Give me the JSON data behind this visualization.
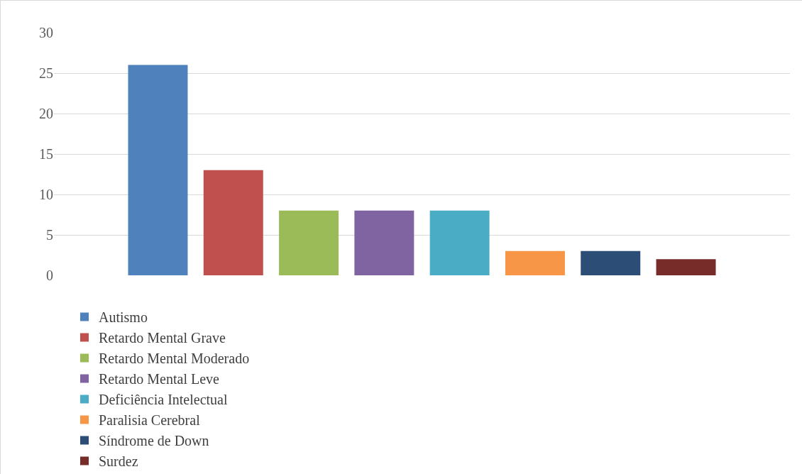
{
  "chart_data": {
    "type": "bar",
    "categories": [
      null
    ],
    "series": [
      {
        "name": "Autismo",
        "color": "#4f81bd",
        "values": [
          26
        ]
      },
      {
        "name": "Retardo Mental Grave",
        "color": "#c0504d",
        "values": [
          13
        ]
      },
      {
        "name": "Retardo Mental Moderado",
        "color": "#9bbb59",
        "values": [
          8
        ]
      },
      {
        "name": "Retardo Mental Leve",
        "color": "#8064a2",
        "values": [
          8
        ]
      },
      {
        "name": "Deficiência Intelectual",
        "color": "#4bacc6",
        "values": [
          8
        ]
      },
      {
        "name": "Paralisia Cerebral",
        "color": "#f79646",
        "values": [
          3
        ]
      },
      {
        "name": "Síndrome de Down",
        "color": "#2c4d75",
        "values": [
          3
        ]
      },
      {
        "name": "Surdez",
        "color": "#772c2a",
        "values": [
          2
        ]
      }
    ],
    "ylim": [
      0,
      30
    ],
    "yticks": [
      0,
      5,
      10,
      15,
      20,
      25,
      30
    ],
    "grid": "y",
    "legend": "bottom",
    "tick_labels": "y"
  }
}
